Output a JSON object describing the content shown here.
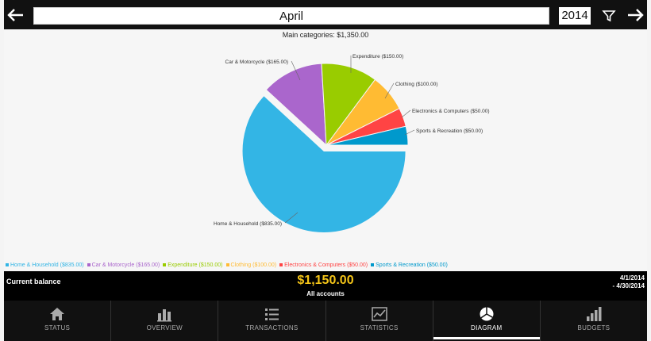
{
  "header": {
    "prev_icon": "arrow-left-icon",
    "next_icon": "arrow-right-icon",
    "month": "April",
    "year": "2014",
    "filter_icon": "filter-icon"
  },
  "chart_data": {
    "type": "pie",
    "title": "Main categories: $1,350.00",
    "slices": [
      {
        "label": "Home & Household ($835.00)",
        "value": 835,
        "color": "#33b5e5",
        "exploded": true
      },
      {
        "label": "Car & Motorcycle ($165.00)",
        "value": 165,
        "color": "#aa66cc",
        "exploded": false
      },
      {
        "label": "Expenditure ($150.00)",
        "value": 150,
        "color": "#99cc00",
        "exploded": false
      },
      {
        "label": "Clothing ($100.00)",
        "value": 100,
        "color": "#ffbb33",
        "exploded": false
      },
      {
        "label": "Electronics & Computers ($50.00)",
        "value": 50,
        "color": "#ff4444",
        "exploded": false
      },
      {
        "label": "Sports & Recreation ($50.00)",
        "value": 50,
        "color": "#0099cc",
        "exploded": false
      }
    ],
    "legend": "bottom"
  },
  "balance": {
    "label": "Current balance",
    "amount": "$1,150.00",
    "sub": "All accounts",
    "range_start": "4/1/2014",
    "range_end": "- 4/30/2014"
  },
  "tabs": [
    {
      "label": "STATUS",
      "icon": "home-icon",
      "active": false
    },
    {
      "label": "OVERVIEW",
      "icon": "bar-chart-icon",
      "active": false
    },
    {
      "label": "TRANSACTIONS",
      "icon": "list-icon",
      "active": false
    },
    {
      "label": "STATISTICS",
      "icon": "line-chart-icon",
      "active": false
    },
    {
      "label": "DIAGRAM",
      "icon": "pie-chart-icon",
      "active": true
    },
    {
      "label": "BUDGETS",
      "icon": "ascending-bars-icon",
      "active": false
    }
  ]
}
